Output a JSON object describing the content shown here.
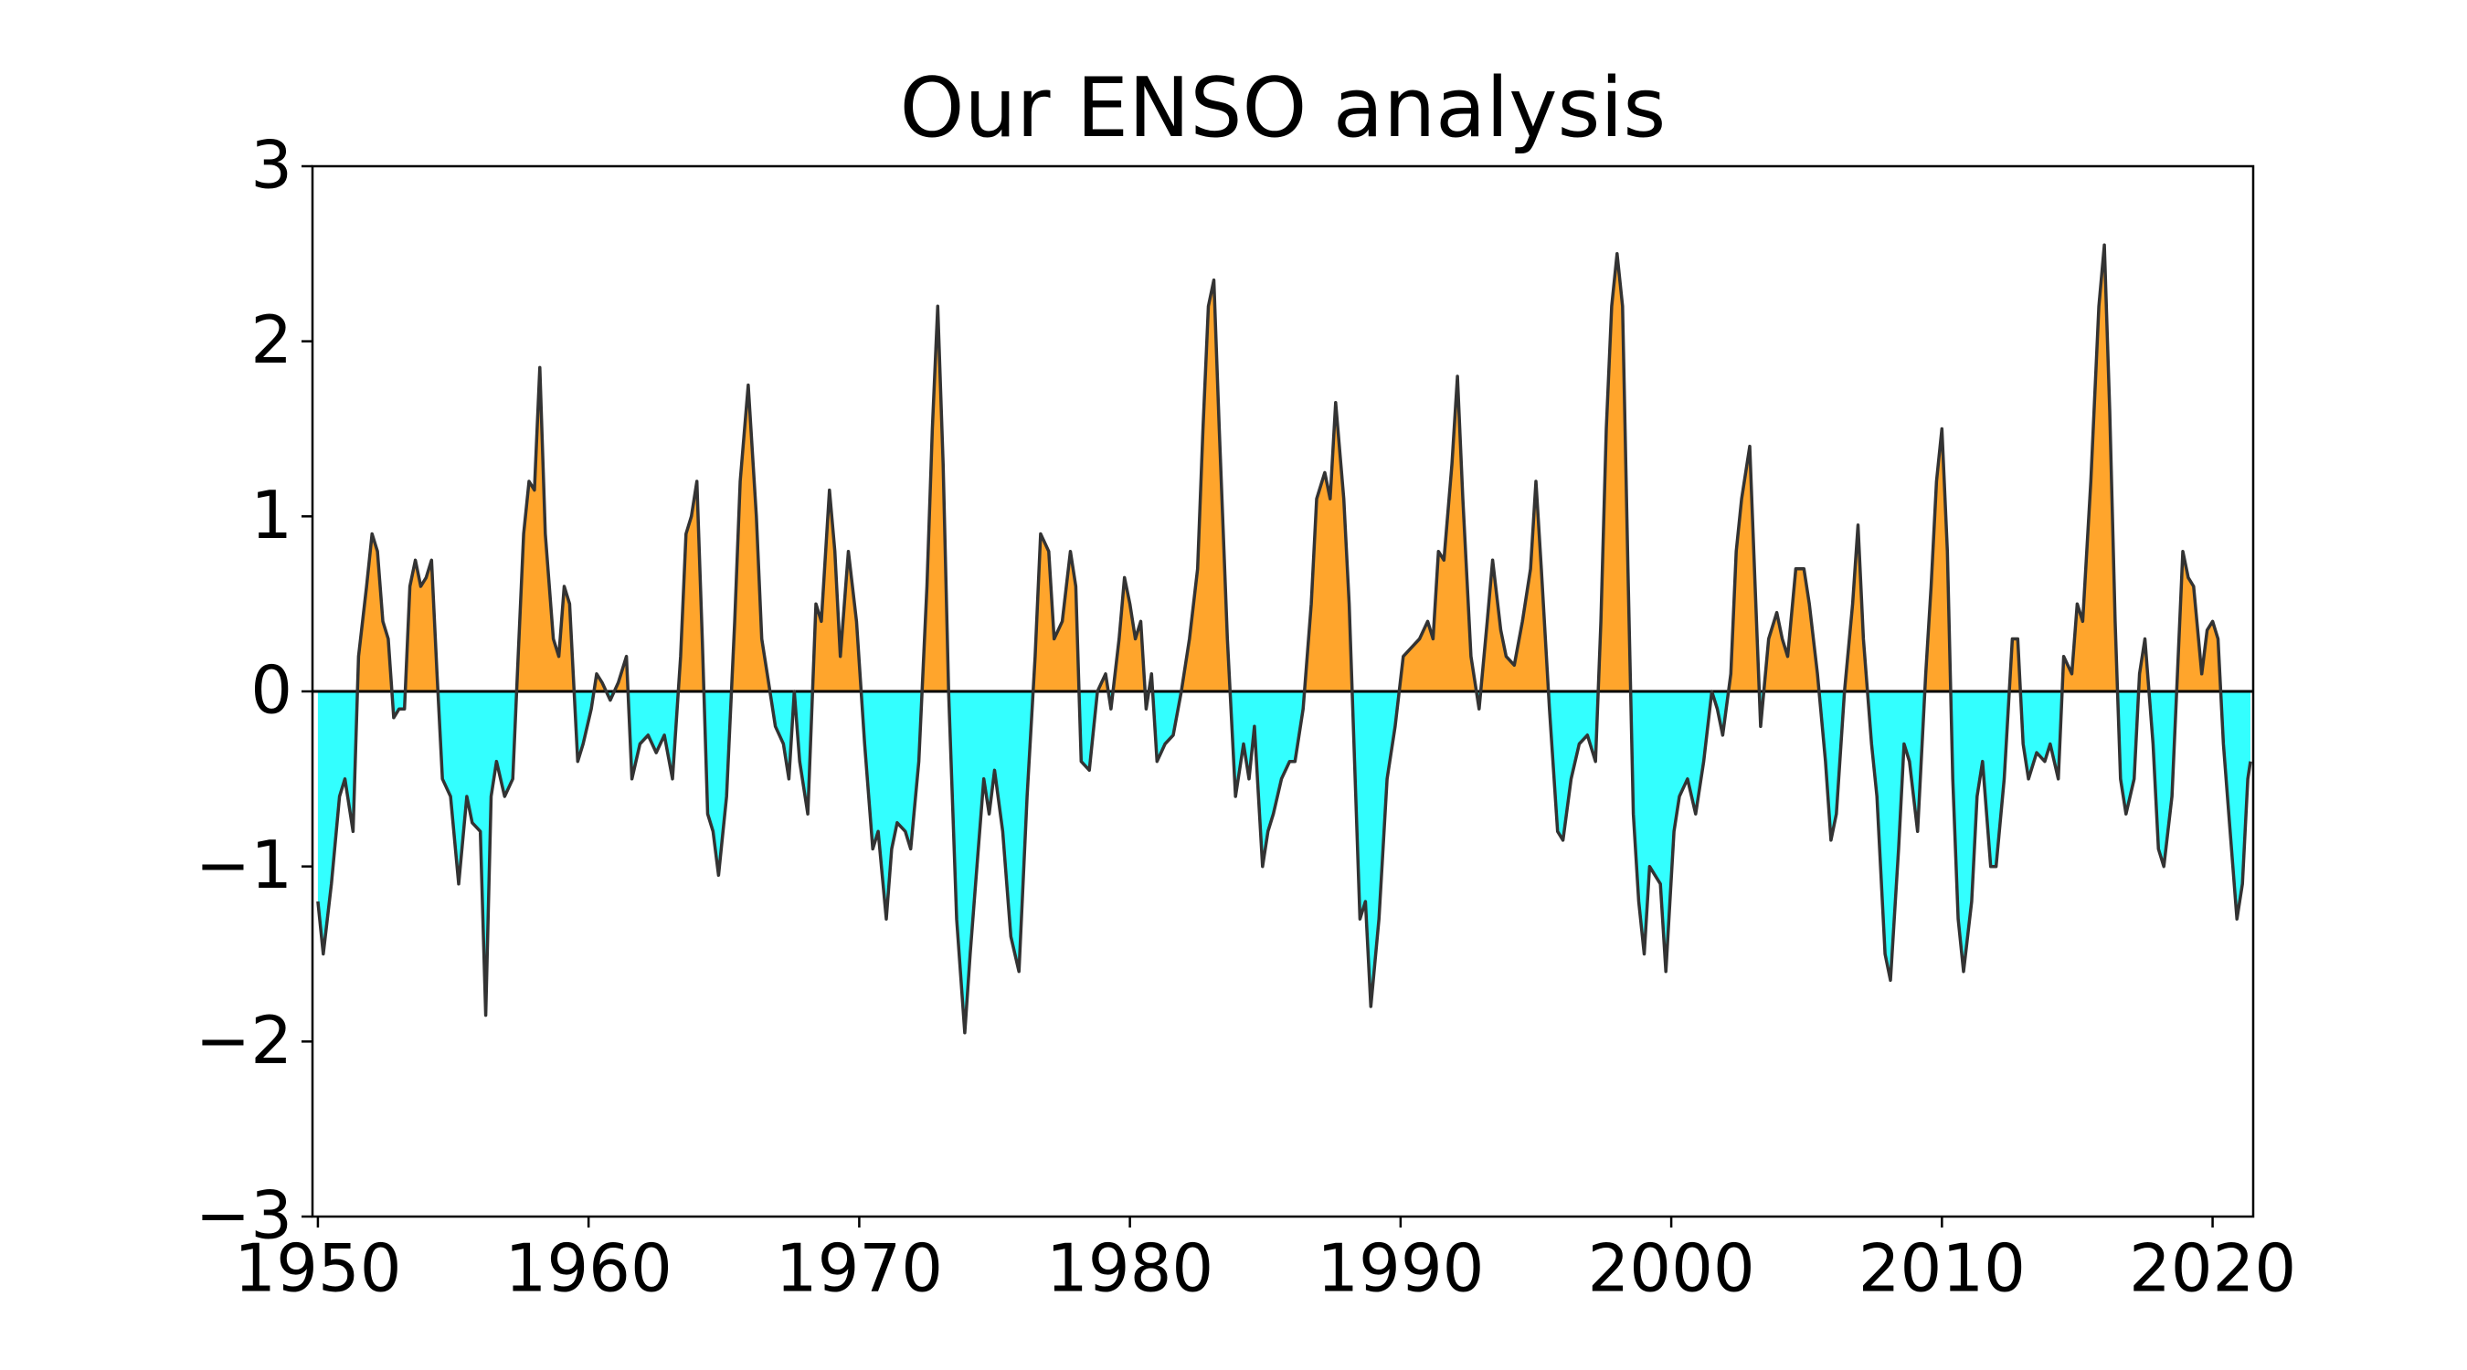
{
  "chart_data": {
    "type": "area",
    "title": "Our ENSO analysis",
    "x": [
      1950.0,
      1950.2,
      1950.5,
      1950.8,
      1951.0,
      1951.3,
      1951.5,
      1951.8,
      1952.0,
      1952.2,
      1952.4,
      1952.6,
      1952.8,
      1953.0,
      1953.2,
      1953.4,
      1953.6,
      1953.8,
      1954.0,
      1954.2,
      1954.4,
      1954.6,
      1954.9,
      1955.2,
      1955.5,
      1955.7,
      1956.0,
      1956.2,
      1956.4,
      1956.6,
      1956.9,
      1957.2,
      1957.4,
      1957.6,
      1957.8,
      1958.0,
      1958.2,
      1958.4,
      1958.7,
      1958.9,
      1959.1,
      1959.3,
      1959.6,
      1959.8,
      1960.1,
      1960.3,
      1960.5,
      1960.8,
      1961.1,
      1961.4,
      1961.6,
      1961.9,
      1962.2,
      1962.5,
      1962.8,
      1963.1,
      1963.4,
      1963.6,
      1963.8,
      1964.0,
      1964.2,
      1964.4,
      1964.6,
      1964.8,
      1965.1,
      1965.4,
      1965.6,
      1965.9,
      1966.2,
      1966.4,
      1966.6,
      1966.9,
      1967.2,
      1967.4,
      1967.6,
      1967.8,
      1968.1,
      1968.4,
      1968.6,
      1968.9,
      1969.1,
      1969.3,
      1969.6,
      1969.9,
      1970.2,
      1970.5,
      1970.7,
      1971.0,
      1971.2,
      1971.4,
      1971.7,
      1971.9,
      1972.2,
      1972.5,
      1972.7,
      1972.9,
      1973.1,
      1973.3,
      1973.6,
      1973.9,
      1974.1,
      1974.4,
      1974.6,
      1974.8,
      1975.0,
      1975.3,
      1975.6,
      1975.9,
      1976.2,
      1976.5,
      1976.7,
      1977.0,
      1977.2,
      1977.5,
      1977.8,
      1978.0,
      1978.2,
      1978.5,
      1978.8,
      1979.1,
      1979.3,
      1979.6,
      1979.8,
      1980.0,
      1980.2,
      1980.4,
      1980.6,
      1980.8,
      1981.0,
      1981.3,
      1981.6,
      1981.9,
      1982.2,
      1982.5,
      1982.7,
      1982.9,
      1983.1,
      1983.3,
      1983.6,
      1983.9,
      1984.2,
      1984.4,
      1984.6,
      1984.9,
      1985.1,
      1985.3,
      1985.6,
      1985.9,
      1986.1,
      1986.4,
      1986.7,
      1986.9,
      1987.2,
      1987.4,
      1987.6,
      1987.9,
      1988.1,
      1988.3,
      1988.5,
      1988.7,
      1988.9,
      1989.2,
      1989.5,
      1989.8,
      1990.1,
      1990.4,
      1990.7,
      1991.0,
      1991.2,
      1991.4,
      1991.6,
      1991.9,
      1992.1,
      1992.3,
      1992.6,
      1992.9,
      1993.2,
      1993.4,
      1993.7,
      1993.9,
      1994.2,
      1994.5,
      1994.8,
      1995.0,
      1995.2,
      1995.5,
      1995.8,
      1996.0,
      1996.3,
      1996.6,
      1996.9,
      1997.2,
      1997.4,
      1997.6,
      1997.8,
      1998.0,
      1998.2,
      1998.4,
      1998.6,
      1998.8,
      1999.0,
      1999.2,
      1999.4,
      1999.6,
      1999.8,
      2000.1,
      2000.3,
      2000.6,
      2000.9,
      2001.2,
      2001.5,
      2001.7,
      2001.9,
      2002.2,
      2002.4,
      2002.6,
      2002.9,
      2003.1,
      2003.3,
      2003.6,
      2003.9,
      2004.1,
      2004.3,
      2004.6,
      2004.9,
      2005.1,
      2005.4,
      2005.7,
      2005.9,
      2006.1,
      2006.4,
      2006.7,
      2006.9,
      2007.1,
      2007.4,
      2007.6,
      2007.9,
      2008.1,
      2008.4,
      2008.6,
      2008.8,
      2009.1,
      2009.4,
      2009.6,
      2009.8,
      2010.0,
      2010.2,
      2010.4,
      2010.6,
      2010.8,
      2011.1,
      2011.3,
      2011.5,
      2011.8,
      2012.0,
      2012.3,
      2012.6,
      2012.8,
      2013.0,
      2013.2,
      2013.5,
      2013.8,
      2014.0,
      2014.3,
      2014.5,
      2014.8,
      2015.0,
      2015.2,
      2015.5,
      2015.8,
      2016.0,
      2016.2,
      2016.4,
      2016.6,
      2016.8,
      2017.1,
      2017.3,
      2017.5,
      2017.8,
      2018.0,
      2018.2,
      2018.5,
      2018.7,
      2018.9,
      2019.1,
      2019.3,
      2019.6,
      2019.8,
      2020.0,
      2020.2,
      2020.4,
      2020.6,
      2020.9,
      2021.1,
      2021.3,
      2021.4
    ],
    "values": [
      -1.2,
      -1.5,
      -1.1,
      -0.6,
      -0.5,
      -0.8,
      0.2,
      0.6,
      0.9,
      0.8,
      0.4,
      0.3,
      -0.15,
      -0.1,
      -0.1,
      0.6,
      0.75,
      0.6,
      0.65,
      0.75,
      0.1,
      -0.5,
      -0.6,
      -1.1,
      -0.6,
      -0.75,
      -0.8,
      -1.85,
      -0.6,
      -0.4,
      -0.6,
      -0.5,
      0.2,
      0.9,
      1.2,
      1.15,
      1.85,
      0.9,
      0.3,
      0.2,
      0.6,
      0.5,
      -0.4,
      -0.3,
      -0.1,
      0.1,
      0.05,
      -0.05,
      0.05,
      0.2,
      -0.5,
      -0.3,
      -0.25,
      -0.35,
      -0.25,
      -0.5,
      0.2,
      0.9,
      1.0,
      1.2,
      0.3,
      -0.7,
      -0.8,
      -1.05,
      -0.6,
      0.4,
      1.2,
      1.75,
      1.0,
      0.3,
      0.1,
      -0.2,
      -0.3,
      -0.5,
      0.0,
      -0.4,
      -0.7,
      0.5,
      0.4,
      1.15,
      0.8,
      0.2,
      0.8,
      0.4,
      -0.3,
      -0.9,
      -0.8,
      -1.3,
      -0.9,
      -0.75,
      -0.8,
      -0.9,
      -0.4,
      0.6,
      1.5,
      2.2,
      1.3,
      0.0,
      -1.3,
      -1.95,
      -1.5,
      -0.9,
      -0.5,
      -0.7,
      -0.45,
      -0.8,
      -1.4,
      -1.6,
      -0.6,
      0.2,
      0.9,
      0.8,
      0.3,
      0.4,
      0.8,
      0.6,
      -0.4,
      -0.45,
      0.0,
      0.1,
      -0.1,
      0.3,
      0.65,
      0.5,
      0.3,
      0.4,
      -0.1,
      0.1,
      -0.4,
      -0.3,
      -0.25,
      0.0,
      0.3,
      0.7,
      1.5,
      2.2,
      2.35,
      1.5,
      0.3,
      -0.6,
      -0.3,
      -0.5,
      -0.2,
      -1.0,
      -0.8,
      -0.7,
      -0.5,
      -0.4,
      -0.4,
      -0.1,
      0.5,
      1.1,
      1.25,
      1.1,
      1.65,
      1.1,
      0.5,
      -0.4,
      -1.3,
      -1.2,
      -1.8,
      -1.3,
      -0.5,
      -0.2,
      0.2,
      0.25,
      0.3,
      0.4,
      0.3,
      0.8,
      0.75,
      1.3,
      1.8,
      1.1,
      0.2,
      -0.1,
      0.4,
      0.75,
      0.35,
      0.2,
      0.15,
      0.4,
      0.7,
      1.2,
      0.7,
      -0.1,
      -0.8,
      -0.85,
      -0.5,
      -0.3,
      -0.25,
      -0.4,
      0.4,
      1.5,
      2.2,
      2.5,
      2.2,
      0.7,
      -0.7,
      -1.2,
      -1.5,
      -1.0,
      -1.05,
      -1.1,
      -1.6,
      -0.8,
      -0.6,
      -0.5,
      -0.7,
      -0.4,
      0.0,
      -0.1,
      -0.25,
      0.1,
      0.8,
      1.1,
      1.4,
      0.6,
      -0.2,
      0.3,
      0.45,
      0.3,
      0.2,
      0.7,
      0.7,
      0.5,
      0.1,
      -0.4,
      -0.85,
      -0.7,
      0.0,
      0.5,
      0.95,
      0.3,
      -0.3,
      -0.6,
      -1.5,
      -1.65,
      -0.9,
      -0.3,
      -0.4,
      -0.8,
      0.1,
      0.6,
      1.2,
      1.5,
      0.8,
      -0.5,
      -1.3,
      -1.6,
      -1.2,
      -0.6,
      -0.4,
      -1.0,
      -1.0,
      -0.5,
      0.3,
      0.3,
      -0.3,
      -0.5,
      -0.35,
      -0.4,
      -0.3,
      -0.5,
      0.2,
      0.1,
      0.5,
      0.4,
      1.2,
      2.2,
      2.55,
      1.6,
      0.4,
      -0.5,
      -0.7,
      -0.5,
      0.1,
      0.3,
      -0.3,
      -0.9,
      -1.0,
      -0.6,
      0.1,
      0.8,
      0.65,
      0.6,
      0.1,
      0.35,
      0.4,
      0.3,
      -0.3,
      -0.7,
      -1.3,
      -1.1,
      -0.5,
      -0.4
    ],
    "line_color": "#333333",
    "positive_color": "#ffa52c",
    "negative_color": "#33ffff",
    "xlim": [
      1949.8,
      2021.5
    ],
    "xticks": [
      1950,
      1960,
      1970,
      1980,
      1990,
      2000,
      2010,
      2020
    ],
    "ylim": [
      -3,
      3
    ],
    "yticks": [
      {
        "value": -3,
        "label": "−3"
      },
      {
        "value": -2,
        "label": "−2"
      },
      {
        "value": -1,
        "label": "−1"
      },
      0,
      1,
      2,
      3
    ]
  }
}
